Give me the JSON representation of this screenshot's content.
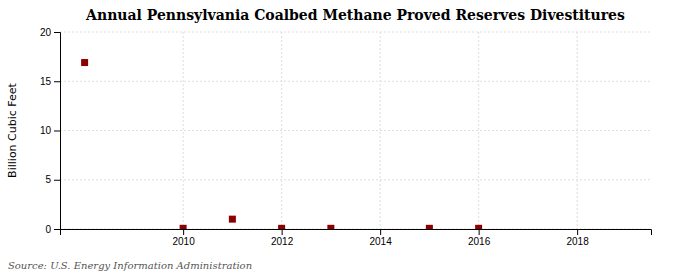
{
  "chart_data": {
    "type": "scatter",
    "title": "Annual Pennsylvania Coalbed Methane Proved Reserves Divestitures",
    "y_label": "Billion Cubic Feet",
    "annotations": [
      "Source: U.S. Energy Information Administration"
    ],
    "x": [
      2008,
      2010,
      2011,
      2012,
      2013,
      2015,
      2016
    ],
    "values": [
      16.9,
      0.07,
      1.0,
      0.07,
      0.07,
      0.07,
      0.07
    ],
    "color": "#8B0000",
    "marker": "square",
    "xlim": [
      2007.5,
      2019.5
    ],
    "ylim": [
      0,
      20
    ],
    "xticks": [
      2010,
      2012,
      2014,
      2016,
      2018
    ],
    "yticks": [
      0,
      5,
      10,
      15,
      20
    ],
    "grid": true
  }
}
